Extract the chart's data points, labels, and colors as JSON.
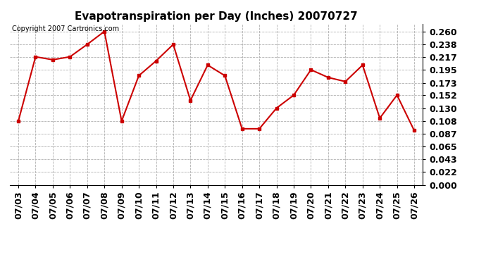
{
  "title": "Evapotranspiration per Day (Inches) 20070727",
  "copyright": "Copyright 2007 Cartronics.com",
  "dates": [
    "07/03",
    "07/04",
    "07/05",
    "07/06",
    "07/07",
    "07/08",
    "07/09",
    "07/10",
    "07/11",
    "07/12",
    "07/13",
    "07/14",
    "07/15",
    "07/16",
    "07/17",
    "07/18",
    "07/19",
    "07/20",
    "07/21",
    "07/22",
    "07/23",
    "07/24",
    "07/25",
    "07/26"
  ],
  "values": [
    0.108,
    0.217,
    0.212,
    0.217,
    0.238,
    0.26,
    0.108,
    0.185,
    0.21,
    0.238,
    0.143,
    0.203,
    0.185,
    0.095,
    0.095,
    0.13,
    0.152,
    0.195,
    0.182,
    0.175,
    0.203,
    0.113,
    0.152,
    0.092
  ],
  "line_color": "#cc0000",
  "marker": "s",
  "marker_size": 3,
  "ylim": [
    0.0,
    0.273
  ],
  "yticks": [
    0.0,
    0.022,
    0.043,
    0.065,
    0.087,
    0.108,
    0.13,
    0.152,
    0.173,
    0.195,
    0.217,
    0.238,
    0.26
  ],
  "background_color": "#ffffff",
  "plot_bg_color": "#ffffff",
  "grid_color": "#b0b0b0",
  "title_fontsize": 11,
  "copyright_fontsize": 7,
  "tick_fontsize": 9
}
